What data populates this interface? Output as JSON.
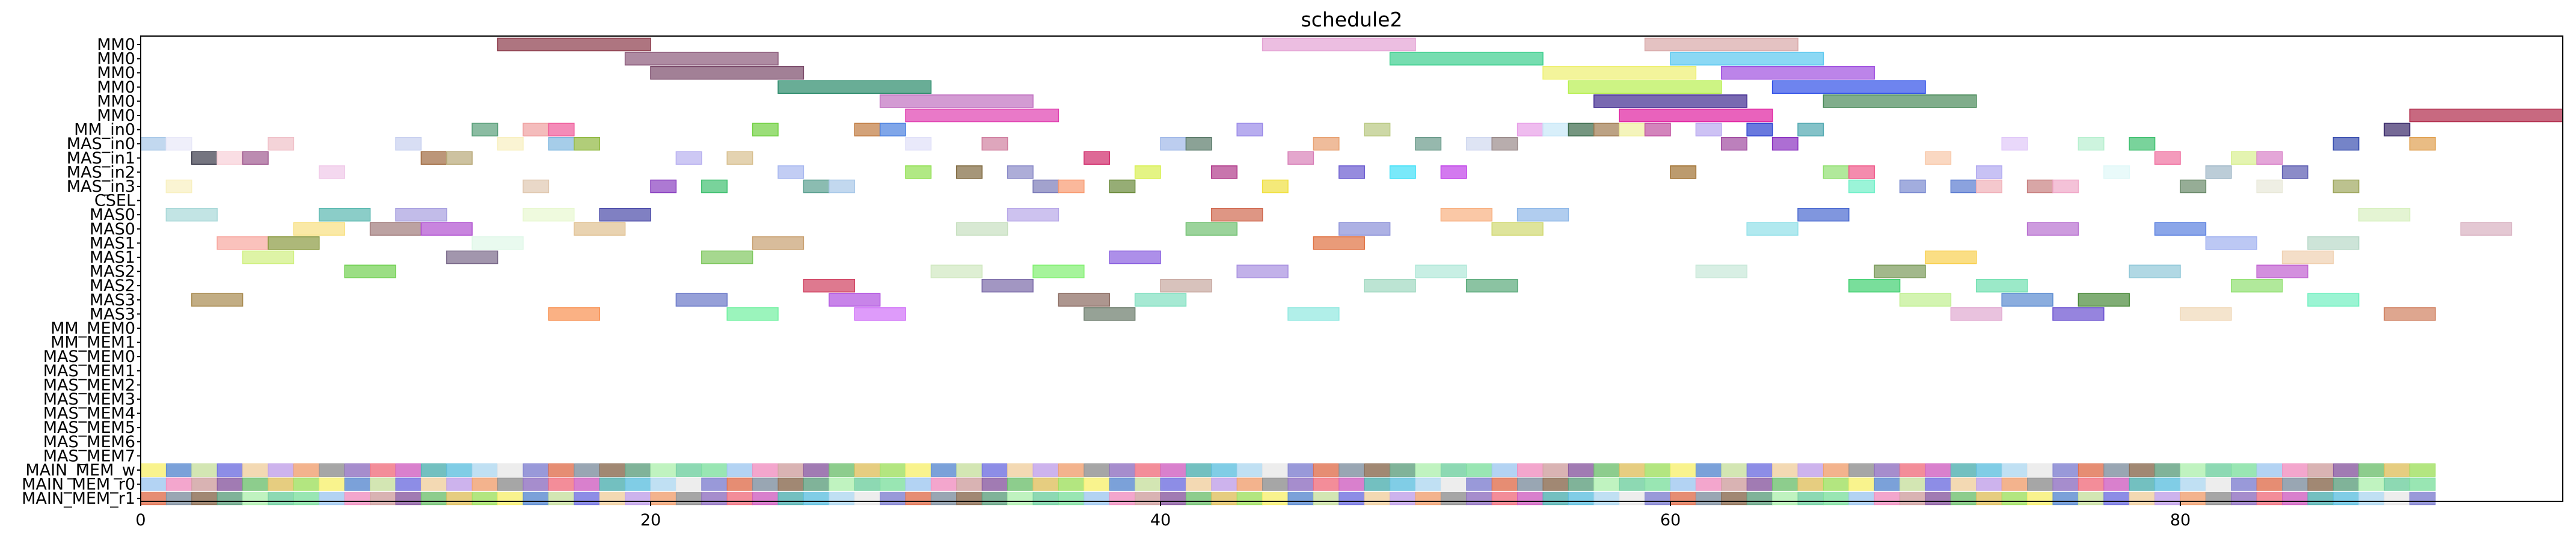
{
  "chart_data": {
    "type": "gantt",
    "title": "schedule2",
    "xlabel": "",
    "ylabel": "",
    "xlim": [
      0,
      95
    ],
    "x_ticks": [
      0,
      20,
      40,
      60,
      80
    ],
    "grid": false,
    "rows": [
      "MM0",
      "MM0",
      "MM0",
      "MM0",
      "MM0",
      "MM0",
      "MM_in0",
      "MAS_in0",
      "MAS_in1",
      "MAS_in2",
      "MAS_in3",
      "CSEL",
      "MAS0",
      "MAS0",
      "MAS1",
      "MAS1",
      "MAS2",
      "MAS2",
      "MAS3",
      "MAS3",
      "MM_MEM0",
      "MM_MEM1",
      "MAS_MEM0",
      "MAS_MEM1",
      "MAS_MEM2",
      "MAS_MEM3",
      "MAS_MEM4",
      "MAS_MEM5",
      "MAS_MEM6",
      "MAS_MEM7",
      "MAIN_MEM_w",
      "MAIN_MEM_r0",
      "MAIN_MEM_r1"
    ],
    "tasks": [
      {
        "row": 0,
        "start": 14,
        "end": 20,
        "color": "#8b3a4a"
      },
      {
        "row": 0,
        "start": 44,
        "end": 50,
        "color": "#e4a3d4"
      },
      {
        "row": 0,
        "start": 59,
        "end": 65,
        "color": "#d8a8a8"
      },
      {
        "row": 1,
        "start": 19,
        "end": 25,
        "color": "#8b5a7a"
      },
      {
        "row": 1,
        "start": 49,
        "end": 55,
        "color": "#3ccf8e"
      },
      {
        "row": 1,
        "start": 60,
        "end": 66,
        "color": "#5ac8f0"
      },
      {
        "row": 2,
        "start": 20,
        "end": 26,
        "color": "#7a4a6a"
      },
      {
        "row": 2,
        "start": 55,
        "end": 61,
        "color": "#eef070"
      },
      {
        "row": 2,
        "start": 62,
        "end": 68,
        "color": "#a050e0"
      },
      {
        "row": 3,
        "start": 25,
        "end": 31,
        "color": "#2a8a6a"
      },
      {
        "row": 3,
        "start": 56,
        "end": 62,
        "color": "#b8f050"
      },
      {
        "row": 3,
        "start": 64,
        "end": 70,
        "color": "#3050e8"
      },
      {
        "row": 4,
        "start": 29,
        "end": 35,
        "color": "#c070c0"
      },
      {
        "row": 4,
        "start": 57,
        "end": 63,
        "color": "#402a90"
      },
      {
        "row": 4,
        "start": 66,
        "end": 72,
        "color": "#4a8a5a"
      },
      {
        "row": 5,
        "start": 30,
        "end": 36,
        "color": "#e040b0"
      },
      {
        "row": 5,
        "start": 58,
        "end": 64,
        "color": "#e020a0"
      },
      {
        "row": 5,
        "start": 89,
        "end": 95,
        "color": "#b02a4a"
      },
      {
        "row": 6,
        "start": 13,
        "end": 14,
        "color": "#5aa07a"
      },
      {
        "row": 6,
        "start": 15,
        "end": 16,
        "color": "#f0a0a0"
      },
      {
        "row": 6,
        "start": 16,
        "end": 17,
        "color": "#f05a9a"
      },
      {
        "row": 6,
        "start": 24,
        "end": 25,
        "color": "#70d040"
      },
      {
        "row": 6,
        "start": 28,
        "end": 29,
        "color": "#c07a40"
      },
      {
        "row": 6,
        "start": 29,
        "end": 30,
        "color": "#4a80e0"
      },
      {
        "row": 6,
        "start": 43,
        "end": 44,
        "color": "#9a8ae8"
      },
      {
        "row": 6,
        "start": 48,
        "end": 49,
        "color": "#b8c880"
      },
      {
        "row": 6,
        "start": 54,
        "end": 55,
        "color": "#e8a0e8"
      },
      {
        "row": 6,
        "start": 55,
        "end": 56,
        "color": "#c8e8f8"
      },
      {
        "row": 6,
        "start": 56,
        "end": 57,
        "color": "#3a6a4a"
      },
      {
        "row": 6,
        "start": 57,
        "end": 58,
        "color": "#a07a50"
      },
      {
        "row": 6,
        "start": 58,
        "end": 59,
        "color": "#f0f0a0"
      },
      {
        "row": 6,
        "start": 59,
        "end": 60,
        "color": "#c050a0"
      },
      {
        "row": 6,
        "start": 61,
        "end": 62,
        "color": "#b8a8f0"
      },
      {
        "row": 6,
        "start": 63,
        "end": 64,
        "color": "#2a40d0"
      },
      {
        "row": 6,
        "start": 65,
        "end": 66,
        "color": "#50a8b0"
      },
      {
        "row": 6,
        "start": 88,
        "end": 89,
        "color": "#3a2a6a"
      },
      {
        "row": 7,
        "start": 0,
        "end": 1,
        "color": "#a8c8e8"
      },
      {
        "row": 7,
        "start": 1,
        "end": 2,
        "color": "#e8e8f8"
      },
      {
        "row": 7,
        "start": 5,
        "end": 6,
        "color": "#f0c0c8"
      },
      {
        "row": 7,
        "start": 10,
        "end": 11,
        "color": "#c8d0f0"
      },
      {
        "row": 7,
        "start": 14,
        "end": 15,
        "color": "#f8f0c0"
      },
      {
        "row": 7,
        "start": 16,
        "end": 17,
        "color": "#80b8e0"
      },
      {
        "row": 7,
        "start": 17,
        "end": 18,
        "color": "#90b840"
      },
      {
        "row": 7,
        "start": 30,
        "end": 31,
        "color": "#e0e0f8"
      },
      {
        "row": 7,
        "start": 33,
        "end": 34,
        "color": "#d080a0"
      },
      {
        "row": 7,
        "start": 40,
        "end": 41,
        "color": "#a0b8e8"
      },
      {
        "row": 7,
        "start": 41,
        "end": 42,
        "color": "#5a7a6a"
      },
      {
        "row": 7,
        "start": 46,
        "end": 47,
        "color": "#e8a070"
      },
      {
        "row": 7,
        "start": 50,
        "end": 51,
        "color": "#6a9a8a"
      },
      {
        "row": 7,
        "start": 52,
        "end": 53,
        "color": "#d0d8f0"
      },
      {
        "row": 7,
        "start": 53,
        "end": 54,
        "color": "#9a8a8a"
      },
      {
        "row": 7,
        "start": 62,
        "end": 63,
        "color": "#a04aa0"
      },
      {
        "row": 7,
        "start": 64,
        "end": 65,
        "color": "#8a30c0"
      },
      {
        "row": 7,
        "start": 73,
        "end": 74,
        "color": "#e0c8f8"
      },
      {
        "row": 7,
        "start": 76,
        "end": 77,
        "color": "#b8f0d0"
      },
      {
        "row": 7,
        "start": 78,
        "end": 79,
        "color": "#40c070"
      },
      {
        "row": 7,
        "start": 86,
        "end": 87,
        "color": "#3a50b0"
      },
      {
        "row": 7,
        "start": 89,
        "end": 90,
        "color": "#e0a050"
      },
      {
        "row": 8,
        "start": 2,
        "end": 3,
        "color": "#3a3a4a"
      },
      {
        "row": 8,
        "start": 3,
        "end": 4,
        "color": "#f8d0d8"
      },
      {
        "row": 8,
        "start": 4,
        "end": 5,
        "color": "#a05a90"
      },
      {
        "row": 8,
        "start": 11,
        "end": 12,
        "color": "#a06a40"
      },
      {
        "row": 8,
        "start": 12,
        "end": 13,
        "color": "#b8a878"
      },
      {
        "row": 8,
        "start": 21,
        "end": 22,
        "color": "#b8b0f0"
      },
      {
        "row": 8,
        "start": 23,
        "end": 24,
        "color": "#d8c090"
      },
      {
        "row": 8,
        "start": 37,
        "end": 38,
        "color": "#d02a6a"
      },
      {
        "row": 8,
        "start": 45,
        "end": 46,
        "color": "#d880b8"
      },
      {
        "row": 8,
        "start": 70,
        "end": 71,
        "color": "#f8c8a8"
      },
      {
        "row": 8,
        "start": 79,
        "end": 80,
        "color": "#f070a0"
      },
      {
        "row": 8,
        "start": 82,
        "end": 83,
        "color": "#d8f090"
      },
      {
        "row": 8,
        "start": 83,
        "end": 84,
        "color": "#d880c8"
      },
      {
        "row": 9,
        "start": 7,
        "end": 8,
        "color": "#f0c8e8"
      },
      {
        "row": 9,
        "start": 25,
        "end": 26,
        "color": "#a8b8f0"
      },
      {
        "row": 9,
        "start": 30,
        "end": 31,
        "color": "#90e050"
      },
      {
        "row": 9,
        "start": 32,
        "end": 33,
        "color": "#806a40"
      },
      {
        "row": 9,
        "start": 34,
        "end": 35,
        "color": "#8a8ac8"
      },
      {
        "row": 9,
        "start": 39,
        "end": 40,
        "color": "#d8f050"
      },
      {
        "row": 9,
        "start": 42,
        "end": 43,
        "color": "#b03a8a"
      },
      {
        "row": 9,
        "start": 47,
        "end": 48,
        "color": "#6a5ad0"
      },
      {
        "row": 9,
        "start": 49,
        "end": 50,
        "color": "#40e0f8"
      },
      {
        "row": 9,
        "start": 51,
        "end": 52,
        "color": "#c040e8"
      },
      {
        "row": 9,
        "start": 60,
        "end": 61,
        "color": "#a07030"
      },
      {
        "row": 9,
        "start": 66,
        "end": 67,
        "color": "#90e070"
      },
      {
        "row": 9,
        "start": 67,
        "end": 68,
        "color": "#f05a8a"
      },
      {
        "row": 9,
        "start": 72,
        "end": 73,
        "color": "#b0a8f0"
      },
      {
        "row": 9,
        "start": 77,
        "end": 78,
        "color": "#e0f8f8"
      },
      {
        "row": 9,
        "start": 81,
        "end": 82,
        "color": "#a0b8c8"
      },
      {
        "row": 9,
        "start": 84,
        "end": 85,
        "color": "#5a5ab0"
      },
      {
        "row": 10,
        "start": 1,
        "end": 2,
        "color": "#f8f0c0"
      },
      {
        "row": 10,
        "start": 15,
        "end": 16,
        "color": "#e0c8b0"
      },
      {
        "row": 10,
        "start": 20,
        "end": 21,
        "color": "#8a40c0"
      },
      {
        "row": 10,
        "start": 22,
        "end": 23,
        "color": "#40c070"
      },
      {
        "row": 10,
        "start": 26,
        "end": 27,
        "color": "#5aa090"
      },
      {
        "row": 10,
        "start": 27,
        "end": 28,
        "color": "#a8c8e8"
      },
      {
        "row": 10,
        "start": 35,
        "end": 36,
        "color": "#7a7ab8"
      },
      {
        "row": 10,
        "start": 36,
        "end": 37,
        "color": "#f89a70"
      },
      {
        "row": 10,
        "start": 38,
        "end": 39,
        "color": "#6a8a3a"
      },
      {
        "row": 10,
        "start": 44,
        "end": 45,
        "color": "#f0e040"
      },
      {
        "row": 10,
        "start": 67,
        "end": 68,
        "color": "#70f0c8"
      },
      {
        "row": 10,
        "start": 69,
        "end": 70,
        "color": "#7a8ad0"
      },
      {
        "row": 10,
        "start": 71,
        "end": 72,
        "color": "#5a7ad0"
      },
      {
        "row": 10,
        "start": 72,
        "end": 73,
        "color": "#f0b0b8"
      },
      {
        "row": 10,
        "start": 74,
        "end": 75,
        "color": "#c88080"
      },
      {
        "row": 10,
        "start": 75,
        "end": 76,
        "color": "#f0a8c8"
      },
      {
        "row": 10,
        "start": 80,
        "end": 81,
        "color": "#6a8a6a"
      },
      {
        "row": 10,
        "start": 83,
        "end": 84,
        "color": "#e8e8d8"
      },
      {
        "row": 10,
        "start": 86,
        "end": 87,
        "color": "#a0a860"
      },
      {
        "row": 12,
        "start": 1,
        "end": 3,
        "color": "#a8d8d8"
      },
      {
        "row": 12,
        "start": 7,
        "end": 9,
        "color": "#5ab8b0"
      },
      {
        "row": 12,
        "start": 10,
        "end": 12,
        "color": "#a8a0e0"
      },
      {
        "row": 12,
        "start": 15,
        "end": 17,
        "color": "#e8f8d0"
      },
      {
        "row": 12,
        "start": 18,
        "end": 20,
        "color": "#4a4aa8"
      },
      {
        "row": 12,
        "start": 34,
        "end": 36,
        "color": "#b8a8e8"
      },
      {
        "row": 12,
        "start": 42,
        "end": 44,
        "color": "#d06a50"
      },
      {
        "row": 12,
        "start": 51,
        "end": 53,
        "color": "#f8b080"
      },
      {
        "row": 12,
        "start": 54,
        "end": 56,
        "color": "#90b8e8"
      },
      {
        "row": 12,
        "start": 65,
        "end": 67,
        "color": "#4a6ad0"
      },
      {
        "row": 12,
        "start": 87,
        "end": 89,
        "color": "#d8f0c0"
      },
      {
        "row": 13,
        "start": 6,
        "end": 8,
        "color": "#f8e080"
      },
      {
        "row": 13,
        "start": 9,
        "end": 11,
        "color": "#a07a7a"
      },
      {
        "row": 13,
        "start": 11,
        "end": 13,
        "color": "#b050d0"
      },
      {
        "row": 13,
        "start": 17,
        "end": 19,
        "color": "#e0c090"
      },
      {
        "row": 13,
        "start": 32,
        "end": 34,
        "color": "#c8e0c0"
      },
      {
        "row": 13,
        "start": 41,
        "end": 43,
        "color": "#70c070"
      },
      {
        "row": 13,
        "start": 47,
        "end": 49,
        "color": "#8a90d8"
      },
      {
        "row": 13,
        "start": 53,
        "end": 55,
        "color": "#d0d870"
      },
      {
        "row": 13,
        "start": 63,
        "end": 65,
        "color": "#90e0e8"
      },
      {
        "row": 13,
        "start": 74,
        "end": 76,
        "color": "#b870d0"
      },
      {
        "row": 13,
        "start": 79,
        "end": 81,
        "color": "#5a80e0"
      },
      {
        "row": 13,
        "start": 91,
        "end": 93,
        "color": "#d8b0c0"
      },
      {
        "row": 14,
        "start": 3,
        "end": 5,
        "color": "#f8a8a0"
      },
      {
        "row": 14,
        "start": 5,
        "end": 7,
        "color": "#8a9a40"
      },
      {
        "row": 14,
        "start": 13,
        "end": 15,
        "color": "#e0f8e8"
      },
      {
        "row": 14,
        "start": 24,
        "end": 26,
        "color": "#c8a070"
      },
      {
        "row": 14,
        "start": 46,
        "end": 48,
        "color": "#e07040"
      },
      {
        "row": 14,
        "start": 81,
        "end": 83,
        "color": "#a0b0f0"
      },
      {
        "row": 14,
        "start": 85,
        "end": 87,
        "color": "#b8d8c8"
      },
      {
        "row": 15,
        "start": 4,
        "end": 6,
        "color": "#d0f080"
      },
      {
        "row": 15,
        "start": 12,
        "end": 14,
        "color": "#7a6a8a"
      },
      {
        "row": 15,
        "start": 22,
        "end": 24,
        "color": "#80c860"
      },
      {
        "row": 15,
        "start": 38,
        "end": 40,
        "color": "#8a60e0"
      },
      {
        "row": 15,
        "start": 70,
        "end": 72,
        "color": "#f8d050"
      },
      {
        "row": 15,
        "start": 84,
        "end": 86,
        "color": "#f0d0b0"
      },
      {
        "row": 16,
        "start": 8,
        "end": 10,
        "color": "#70d050"
      },
      {
        "row": 16,
        "start": 31,
        "end": 33,
        "color": "#d0e8c0"
      },
      {
        "row": 16,
        "start": 35,
        "end": 37,
        "color": "#80f070"
      },
      {
        "row": 16,
        "start": 43,
        "end": 45,
        "color": "#a890e0"
      },
      {
        "row": 16,
        "start": 50,
        "end": 52,
        "color": "#b0e8d8"
      },
      {
        "row": 16,
        "start": 61,
        "end": 63,
        "color": "#c8e8d8"
      },
      {
        "row": 16,
        "start": 68,
        "end": 70,
        "color": "#7a9a5a"
      },
      {
        "row": 16,
        "start": 78,
        "end": 80,
        "color": "#90c8d8"
      },
      {
        "row": 16,
        "start": 83,
        "end": 85,
        "color": "#c060d0"
      },
      {
        "row": 17,
        "start": 26,
        "end": 28,
        "color": "#d04060"
      },
      {
        "row": 17,
        "start": 33,
        "end": 35,
        "color": "#7a6aa8"
      },
      {
        "row": 17,
        "start": 40,
        "end": 42,
        "color": "#c8a8a0"
      },
      {
        "row": 17,
        "start": 48,
        "end": 50,
        "color": "#a0d8c0"
      },
      {
        "row": 17,
        "start": 52,
        "end": 54,
        "color": "#5aaa7a"
      },
      {
        "row": 17,
        "start": 67,
        "end": 69,
        "color": "#40d070"
      },
      {
        "row": 17,
        "start": 72,
        "end": 74,
        "color": "#70e0b0"
      },
      {
        "row": 17,
        "start": 82,
        "end": 84,
        "color": "#90e070"
      },
      {
        "row": 18,
        "start": 2,
        "end": 4,
        "color": "#a88a50"
      },
      {
        "row": 18,
        "start": 21,
        "end": 23,
        "color": "#6a78c8"
      },
      {
        "row": 18,
        "start": 27,
        "end": 29,
        "color": "#b050e0"
      },
      {
        "row": 18,
        "start": 36,
        "end": 38,
        "color": "#8a6a60"
      },
      {
        "row": 18,
        "start": 39,
        "end": 41,
        "color": "#80e0c0"
      },
      {
        "row": 18,
        "start": 69,
        "end": 71,
        "color": "#c0f090"
      },
      {
        "row": 18,
        "start": 73,
        "end": 75,
        "color": "#5a8ad0"
      },
      {
        "row": 18,
        "start": 76,
        "end": 78,
        "color": "#4a8a3a"
      },
      {
        "row": 18,
        "start": 85,
        "end": 87,
        "color": "#70f0c0"
      },
      {
        "row": 19,
        "start": 16,
        "end": 18,
        "color": "#f89050"
      },
      {
        "row": 19,
        "start": 23,
        "end": 25,
        "color": "#70f0a0"
      },
      {
        "row": 19,
        "start": 28,
        "end": 30,
        "color": "#d070f8"
      },
      {
        "row": 19,
        "start": 37,
        "end": 39,
        "color": "#6a7a6a"
      },
      {
        "row": 19,
        "start": 45,
        "end": 47,
        "color": "#90e8e0"
      },
      {
        "row": 19,
        "start": 71,
        "end": 73,
        "color": "#e0a8d0"
      },
      {
        "row": 19,
        "start": 75,
        "end": 77,
        "color": "#6a50d0"
      },
      {
        "row": 19,
        "start": 80,
        "end": 82,
        "color": "#f0d8b8"
      },
      {
        "row": 19,
        "start": 88,
        "end": 90,
        "color": "#d08060"
      }
    ],
    "strip_rows": [
      30,
      31,
      32
    ],
    "strip_start": 0,
    "strip_end": 90,
    "strip_colors": [
      "#f8f070",
      "#b0d8f0",
      "#8a5aa0",
      "#f07080",
      "#80e0a0",
      "#c0a0e8",
      "#8a6a50",
      "#5a8ad0",
      "#e8e8e8",
      "#70c070",
      "#d060c0",
      "#a0c8f0",
      "#f0a070",
      "#60a080",
      "#c8e0a0",
      "#8080d0",
      "#e0c060",
      "#50b0b0",
      "#f090c0",
      "#909090",
      "#b0f0b0",
      "#7070e0",
      "#e07050",
      "#a0e060",
      "#60c0e0",
      "#d0a0a0",
      "#9070c0",
      "#70d0a0",
      "#f0d0a0",
      "#8090a0"
    ]
  }
}
